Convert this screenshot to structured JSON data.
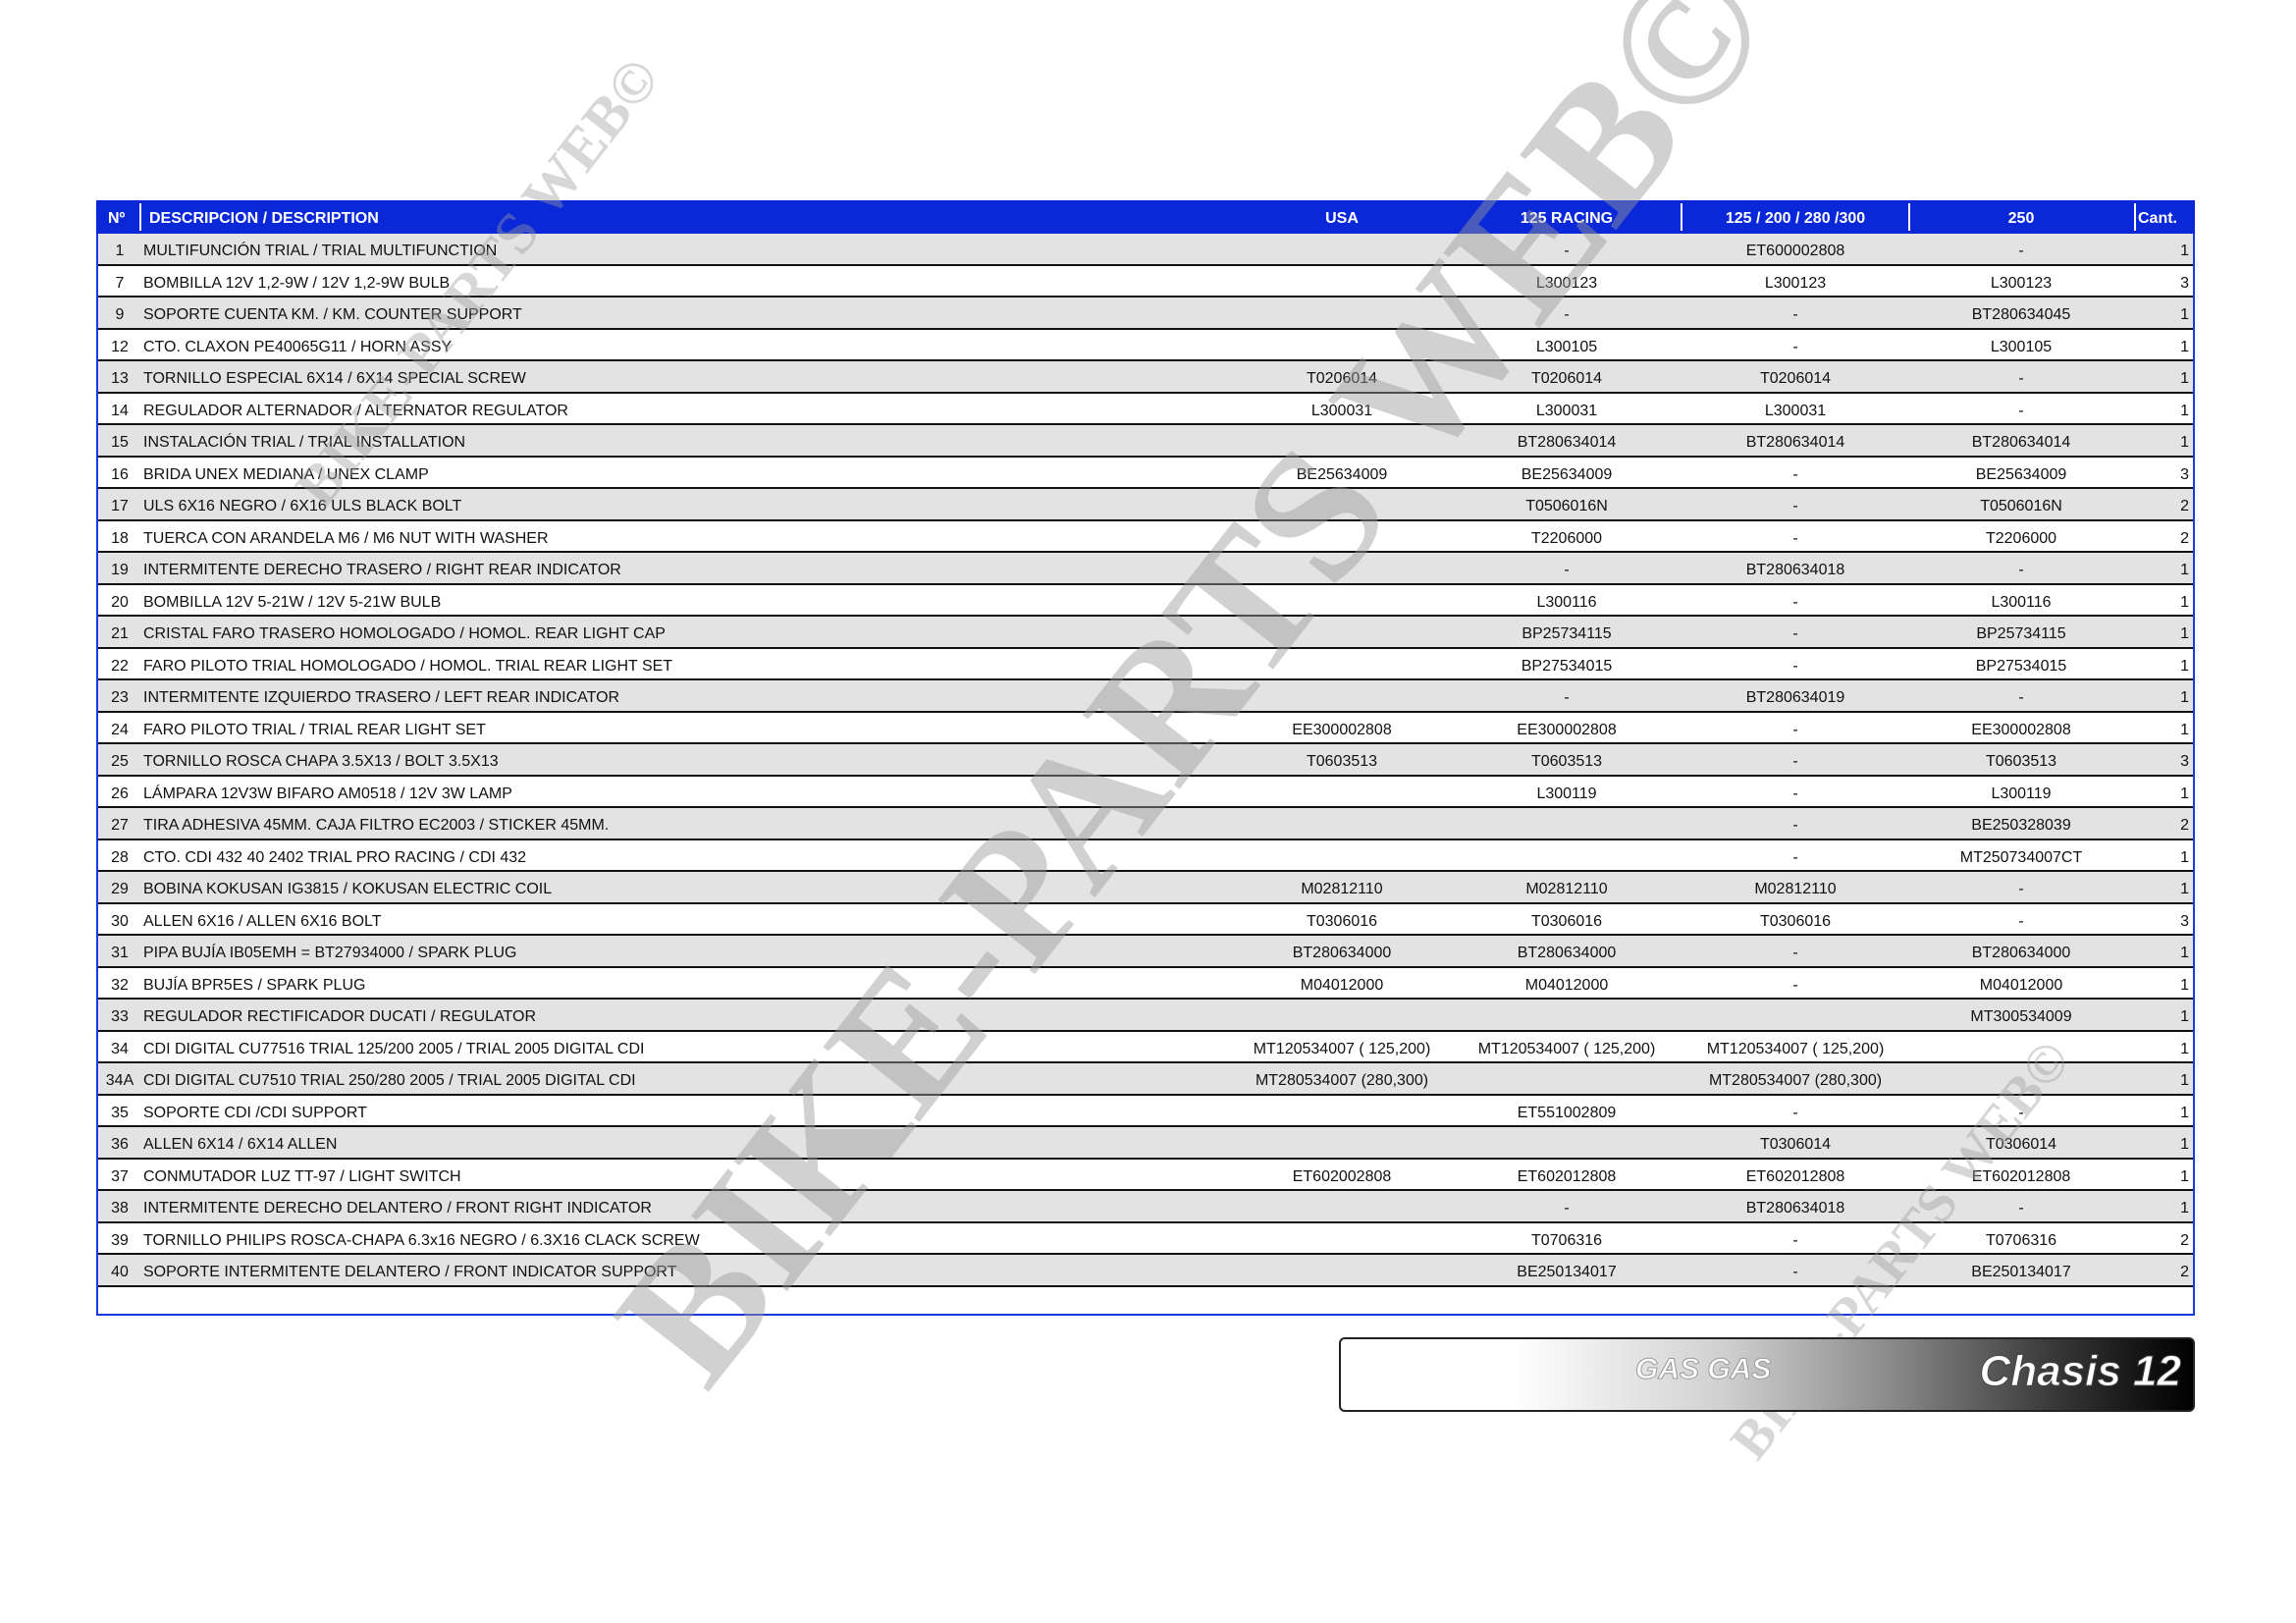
{
  "table": {
    "headers": {
      "no": "Nº",
      "desc": "DESCRIPCION / DESCRIPTION",
      "usa": "USA",
      "r125": "125 RACING",
      "r200": "125 / 200 / 280 /300",
      "r250": "250",
      "cant": "Cant."
    },
    "rows": [
      {
        "no": "1",
        "desc": "MULTIFUNCIÓN TRIAL / TRIAL MULTIFUNCTION",
        "usa": "",
        "r125": "-",
        "r200": "ET600002808",
        "r250": "-",
        "cant": "1"
      },
      {
        "no": "7",
        "desc": "BOMBILLA 12V 1,2-9W / 12V 1,2-9W BULB",
        "usa": "",
        "r125": "L300123",
        "r200": "L300123",
        "r250": "L300123",
        "cant": "3"
      },
      {
        "no": "9",
        "desc": "SOPORTE CUENTA KM. / KM. COUNTER SUPPORT",
        "usa": "",
        "r125": "-",
        "r200": "-",
        "r250": "BT280634045",
        "cant": "1"
      },
      {
        "no": "12",
        "desc": "CTO. CLAXON PE40065G11 / HORN ASSY",
        "usa": "",
        "r125": "L300105",
        "r200": "-",
        "r250": "L300105",
        "cant": "1"
      },
      {
        "no": "13",
        "desc": "TORNILLO ESPECIAL 6X14 / 6X14 SPECIAL SCREW",
        "usa": "T0206014",
        "r125": "T0206014",
        "r200": "T0206014",
        "r250": "-",
        "cant": "1"
      },
      {
        "no": "14",
        "desc": "REGULADOR ALTERNADOR / ALTERNATOR REGULATOR",
        "usa": "L300031",
        "r125": "L300031",
        "r200": "L300031",
        "r250": "-",
        "cant": "1"
      },
      {
        "no": "15",
        "desc": "INSTALACIÓN TRIAL / TRIAL INSTALLATION",
        "usa": "",
        "r125": "BT280634014",
        "r200": "BT280634014",
        "r250": "BT280634014",
        "cant": "1"
      },
      {
        "no": "16",
        "desc": "BRIDA UNEX MEDIANA / UNEX CLAMP",
        "usa": "BE25634009",
        "r125": "BE25634009",
        "r200": "-",
        "r250": "BE25634009",
        "cant": "3"
      },
      {
        "no": "17",
        "desc": "ULS 6X16 NEGRO / 6X16 ULS BLACK BOLT",
        "usa": "",
        "r125": "T0506016N",
        "r200": "-",
        "r250": "T0506016N",
        "cant": "2"
      },
      {
        "no": "18",
        "desc": "TUERCA CON ARANDELA M6 / M6 NUT WITH WASHER",
        "usa": "",
        "r125": "T2206000",
        "r200": "-",
        "r250": "T2206000",
        "cant": "2"
      },
      {
        "no": "19",
        "desc": "INTERMITENTE DERECHO TRASERO / RIGHT REAR INDICATOR",
        "usa": "",
        "r125": "-",
        "r200": "BT280634018",
        "r250": "-",
        "cant": "1"
      },
      {
        "no": "20",
        "desc": "BOMBILLA 12V 5-21W / 12V 5-21W BULB",
        "usa": "",
        "r125": "L300116",
        "r200": "-",
        "r250": "L300116",
        "cant": "1"
      },
      {
        "no": "21",
        "desc": "CRISTAL FARO TRASERO HOMOLOGADO / HOMOL. REAR LIGHT CAP",
        "usa": "",
        "r125": "BP25734115",
        "r200": "-",
        "r250": "BP25734115",
        "cant": "1"
      },
      {
        "no": "22",
        "desc": "FARO PILOTO TRIAL HOMOLOGADO / HOMOL. TRIAL REAR LIGHT SET",
        "usa": "",
        "r125": "BP27534015",
        "r200": "-",
        "r250": "BP27534015",
        "cant": "1"
      },
      {
        "no": "23",
        "desc": "INTERMITENTE IZQUIERDO TRASERO / LEFT REAR INDICATOR",
        "usa": "",
        "r125": "-",
        "r200": "BT280634019",
        "r250": "-",
        "cant": "1"
      },
      {
        "no": "24",
        "desc": "FARO PILOTO TRIAL / TRIAL REAR LIGHT SET",
        "usa": "EE300002808",
        "r125": "EE300002808",
        "r200": "-",
        "r250": "EE300002808",
        "cant": "1"
      },
      {
        "no": "25",
        "desc": "TORNILLO ROSCA CHAPA 3.5X13 / BOLT 3.5X13",
        "usa": "T0603513",
        "r125": "T0603513",
        "r200": "-",
        "r250": "T0603513",
        "cant": "3"
      },
      {
        "no": "26",
        "desc": "LÁMPARA 12V3W BIFARO AM0518 / 12V 3W LAMP",
        "usa": "",
        "r125": "L300119",
        "r200": "-",
        "r250": "L300119",
        "cant": "1"
      },
      {
        "no": "27",
        "desc": "TIRA ADHESIVA 45MM. CAJA FILTRO EC2003 / STICKER 45MM.",
        "usa": "",
        "r125": "",
        "r200": "-",
        "r250": "BE250328039",
        "cant": "2"
      },
      {
        "no": "28",
        "desc": "CTO. CDI 432 40 2402 TRIAL PRO RACING / CDI 432",
        "usa": "",
        "r125": "",
        "r200": "-",
        "r250": "MT250734007CT",
        "cant": "1"
      },
      {
        "no": "29",
        "desc": "BOBINA KOKUSAN IG3815 / KOKUSAN ELECTRIC COIL",
        "usa": "M02812110",
        "r125": "M02812110",
        "r200": "M02812110",
        "r250": "-",
        "cant": "1"
      },
      {
        "no": "30",
        "desc": "ALLEN 6X16 / ALLEN 6X16 BOLT",
        "usa": "T0306016",
        "r125": "T0306016",
        "r200": "T0306016",
        "r250": "-",
        "cant": "3"
      },
      {
        "no": "31",
        "desc": "PIPA BUJÍA IB05EMH = BT27934000 / SPARK PLUG",
        "usa": "BT280634000",
        "r125": "BT280634000",
        "r200": "-",
        "r250": "BT280634000",
        "cant": "1"
      },
      {
        "no": "32",
        "desc": "BUJÍA BPR5ES / SPARK PLUG",
        "usa": "M04012000",
        "r125": "M04012000",
        "r200": "-",
        "r250": "M04012000",
        "cant": "1"
      },
      {
        "no": "33",
        "desc": "REGULADOR RECTIFICADOR DUCATI / REGULATOR",
        "usa": "",
        "r125": "",
        "r200": "",
        "r250": "MT300534009",
        "cant": "1"
      },
      {
        "no": "34",
        "desc": "CDI DIGITAL CU77516 TRIAL 125/200 2005 / TRIAL 2005 DIGITAL CDI",
        "usa": "MT120534007 ( 125,200)",
        "r125": "MT120534007 ( 125,200)",
        "r200": "MT120534007 ( 125,200)",
        "r250": "",
        "cant": "1"
      },
      {
        "no": "34A",
        "desc": "CDI DIGITAL CU7510 TRIAL 250/280 2005 / TRIAL 2005 DIGITAL CDI",
        "usa": "MT280534007 (280,300)",
        "r125": "",
        "r200": "MT280534007 (280,300)",
        "r250": "",
        "cant": "1"
      },
      {
        "no": "35",
        "desc": "SOPORTE CDI /CDI SUPPORT",
        "usa": "",
        "r125": "ET551002809",
        "r200": "-",
        "r250": "-",
        "cant": "1"
      },
      {
        "no": "36",
        "desc": "ALLEN 6X14 / 6X14 ALLEN",
        "usa": "",
        "r125": "",
        "r200": "T0306014",
        "r250": "T0306014",
        "cant": "1"
      },
      {
        "no": "37",
        "desc": "CONMUTADOR LUZ TT-97 / LIGHT SWITCH",
        "usa": "ET602002808",
        "r125": "ET602012808",
        "r200": "ET602012808",
        "r250": "ET602012808",
        "cant": "1"
      },
      {
        "no": "38",
        "desc": "INTERMITENTE DERECHO DELANTERO / FRONT RIGHT INDICATOR",
        "usa": "",
        "r125": "-",
        "r200": "BT280634018",
        "r250": "-",
        "cant": "1"
      },
      {
        "no": "39",
        "desc": "TORNILLO PHILIPS ROSCA-CHAPA 6.3x16 NEGRO / 6.3X16 CLACK SCREW",
        "usa": "",
        "r125": "T0706316",
        "r200": "-",
        "r250": "T0706316",
        "cant": "2"
      },
      {
        "no": "40",
        "desc": "SOPORTE INTERMITENTE DELANTERO / FRONT INDICATOR SUPPORT",
        "usa": "",
        "r125": "BE250134017",
        "r200": "-",
        "r250": "BE250134017",
        "cant": "2"
      }
    ]
  },
  "footer": {
    "brand": "GAS GAS",
    "section": "Chasis 12"
  },
  "watermark": {
    "text": "BIKE-PARTS WEB©"
  },
  "colors": {
    "header": "#0a28d8",
    "row_alt": "#e3e3e3"
  }
}
